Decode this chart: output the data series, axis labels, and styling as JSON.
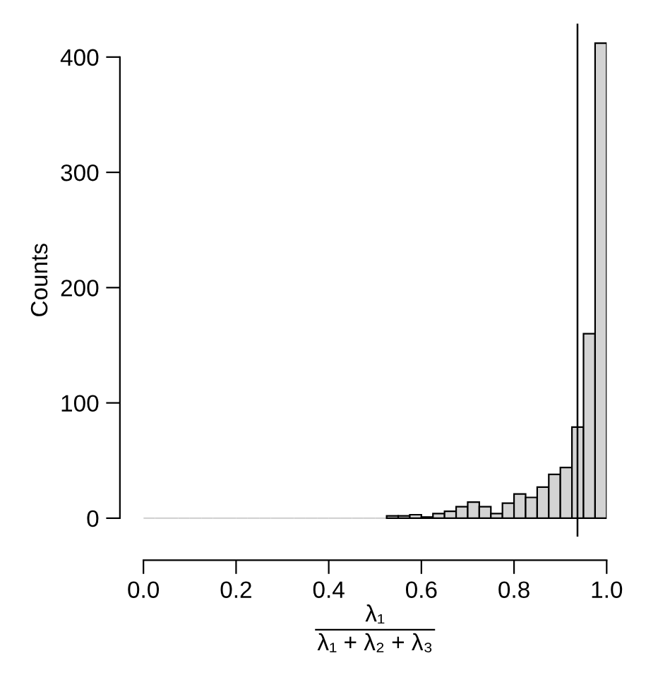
{
  "chart_data": {
    "type": "histogram",
    "ylabel": "Counts",
    "xlabel": "λ₁\nλ₁ + λ₂ + λ₃",
    "bins": [
      0,
      0.025,
      0.05,
      0.075,
      0.1,
      0.125,
      0.15,
      0.175,
      0.2,
      0.225,
      0.25,
      0.275,
      0.3,
      0.325,
      0.35,
      0.375,
      0.4,
      0.425,
      0.45,
      0.475,
      0.5,
      0.525,
      0.55,
      0.575,
      0.6,
      0.625,
      0.65,
      0.675,
      0.7,
      0.725,
      0.75,
      0.775,
      0.8,
      0.825,
      0.85,
      0.875,
      0.9,
      0.925,
      0.95,
      0.975,
      1.0
    ],
    "values": [
      0,
      0,
      0,
      0,
      0,
      0,
      0,
      0,
      0,
      0,
      0,
      0,
      0,
      0,
      0,
      0,
      0,
      0,
      0,
      0,
      0,
      2,
      2,
      3,
      1,
      4,
      6,
      10,
      14,
      10,
      4,
      13,
      21,
      18,
      27,
      38,
      44,
      79,
      160,
      412
    ],
    "color": "#d3d3d3",
    "xlim": [
      0,
      1
    ],
    "ylim": [
      -16,
      429
    ],
    "xticks": [
      {
        "value": 0,
        "label": "0.0"
      },
      {
        "value": 0.2,
        "label": "0.2"
      },
      {
        "value": 0.4,
        "label": "0.4"
      },
      {
        "value": 0.6,
        "label": "0.6"
      },
      {
        "value": 0.8,
        "label": "0.8"
      },
      {
        "value": 1.0,
        "label": "1.0"
      }
    ],
    "yticks": [
      0,
      100,
      200,
      300,
      400
    ],
    "ref_lines": [
      {
        "axis": "x",
        "value": 0.937,
        "label": null,
        "color": "#000000"
      }
    ],
    "grid": false,
    "legend": false
  }
}
